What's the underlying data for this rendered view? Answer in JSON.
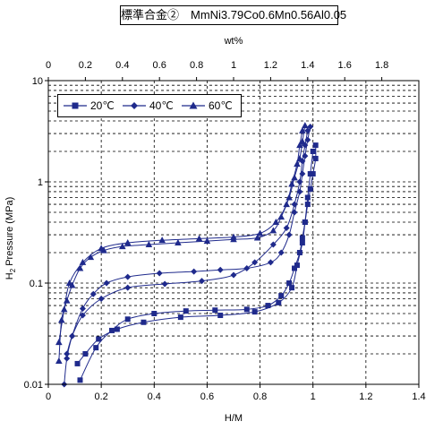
{
  "chart_data": {
    "type": "scatter",
    "title": "標準合金②　MmNi3.79Co0.6Mn0.56Al0.05",
    "xlabel": "H/M",
    "ylabel_pre": "H",
    "ylabel_sub": "2",
    "ylabel_post": " Pressure (MPa)",
    "x2label": "wt%",
    "xlim": [
      0,
      1.4
    ],
    "x2lim": [
      0,
      2.0
    ],
    "ylim": [
      0.01,
      10
    ],
    "yscale": "log",
    "grid": true,
    "legend_placement": "top-left",
    "x_ticks": [
      "0",
      "0.2",
      "0.4",
      "0.6",
      "0.8",
      "1",
      "1.2",
      "1.4"
    ],
    "x2_ticks": [
      "0",
      "0.2",
      "0.4",
      "0.6",
      "0.8",
      "1",
      "1.2",
      "1.4",
      "1.6",
      "1.8"
    ],
    "y_ticks": [
      "0.01",
      "0.1",
      "1",
      "10"
    ],
    "series": [
      {
        "name": "20℃",
        "marker": "square",
        "color": "#1f2a8c",
        "points": [
          [
            0.12,
            0.011
          ],
          [
            0.18,
            0.023
          ],
          [
            0.24,
            0.034
          ],
          [
            0.3,
            0.044
          ],
          [
            0.4,
            0.05
          ],
          [
            0.52,
            0.053
          ],
          [
            0.63,
            0.054
          ],
          [
            0.75,
            0.055
          ],
          [
            0.83,
            0.06
          ],
          [
            0.88,
            0.075
          ],
          [
            0.91,
            0.1
          ],
          [
            0.93,
            0.14
          ],
          [
            0.95,
            0.2
          ],
          [
            0.96,
            0.28
          ],
          [
            0.97,
            0.4
          ],
          [
            0.98,
            0.6
          ],
          [
            0.99,
            0.85
          ],
          [
            1.0,
            1.2
          ],
          [
            1.01,
            1.7
          ],
          [
            1.01,
            2.3
          ]
        ],
        "return": [
          [
            1.0,
            2.0
          ],
          [
            0.99,
            1.2
          ],
          [
            0.98,
            0.7
          ],
          [
            0.97,
            0.4
          ],
          [
            0.96,
            0.25
          ],
          [
            0.94,
            0.15
          ],
          [
            0.92,
            0.09
          ],
          [
            0.87,
            0.064
          ],
          [
            0.78,
            0.052
          ],
          [
            0.65,
            0.048
          ],
          [
            0.5,
            0.046
          ],
          [
            0.36,
            0.041
          ],
          [
            0.26,
            0.035
          ],
          [
            0.19,
            0.028
          ],
          [
            0.14,
            0.02
          ],
          [
            0.11,
            0.016
          ]
        ]
      },
      {
        "name": "40℃",
        "marker": "diamond",
        "color": "#1f2a8c",
        "points": [
          [
            0.06,
            0.01
          ],
          [
            0.07,
            0.018
          ],
          [
            0.09,
            0.03
          ],
          [
            0.13,
            0.056
          ],
          [
            0.17,
            0.078
          ],
          [
            0.22,
            0.1
          ],
          [
            0.3,
            0.115
          ],
          [
            0.42,
            0.125
          ],
          [
            0.55,
            0.13
          ],
          [
            0.65,
            0.135
          ],
          [
            0.75,
            0.14
          ],
          [
            0.84,
            0.16
          ],
          [
            0.88,
            0.2
          ],
          [
            0.91,
            0.3
          ],
          [
            0.93,
            0.5
          ],
          [
            0.95,
            0.8
          ],
          [
            0.96,
            1.2
          ],
          [
            0.97,
            1.8
          ],
          [
            0.98,
            2.6
          ],
          [
            0.99,
            3.5
          ]
        ],
        "return": [
          [
            0.98,
            3.2
          ],
          [
            0.97,
            2.3
          ],
          [
            0.96,
            1.6
          ],
          [
            0.95,
            1.0
          ],
          [
            0.93,
            0.6
          ],
          [
            0.9,
            0.35
          ],
          [
            0.85,
            0.24
          ],
          [
            0.78,
            0.16
          ],
          [
            0.7,
            0.12
          ],
          [
            0.58,
            0.105
          ],
          [
            0.44,
            0.098
          ],
          [
            0.3,
            0.09
          ],
          [
            0.2,
            0.07
          ],
          [
            0.13,
            0.048
          ],
          [
            0.09,
            0.03
          ],
          [
            0.07,
            0.02
          ]
        ]
      },
      {
        "name": "60℃",
        "marker": "triangle",
        "color": "#1f2a8c",
        "points": [
          [
            0.04,
            0.017
          ],
          [
            0.05,
            0.043
          ],
          [
            0.07,
            0.067
          ],
          [
            0.09,
            0.095
          ],
          [
            0.12,
            0.14
          ],
          [
            0.16,
            0.18
          ],
          [
            0.21,
            0.21
          ],
          [
            0.28,
            0.23
          ],
          [
            0.38,
            0.24
          ],
          [
            0.49,
            0.25
          ],
          [
            0.6,
            0.26
          ],
          [
            0.7,
            0.27
          ],
          [
            0.79,
            0.28
          ],
          [
            0.85,
            0.33
          ],
          [
            0.88,
            0.45
          ],
          [
            0.91,
            0.7
          ],
          [
            0.93,
            1.1
          ],
          [
            0.95,
            1.7
          ],
          [
            0.96,
            2.5
          ],
          [
            0.97,
            3.6
          ]
        ],
        "return": [
          [
            0.96,
            3.2
          ],
          [
            0.95,
            2.3
          ],
          [
            0.94,
            1.5
          ],
          [
            0.92,
            0.95
          ],
          [
            0.9,
            0.6
          ],
          [
            0.86,
            0.4
          ],
          [
            0.8,
            0.31
          ],
          [
            0.7,
            0.285
          ],
          [
            0.57,
            0.275
          ],
          [
            0.43,
            0.265
          ],
          [
            0.3,
            0.25
          ],
          [
            0.2,
            0.22
          ],
          [
            0.13,
            0.16
          ],
          [
            0.08,
            0.1
          ],
          [
            0.06,
            0.055
          ],
          [
            0.04,
            0.026
          ]
        ]
      }
    ]
  }
}
